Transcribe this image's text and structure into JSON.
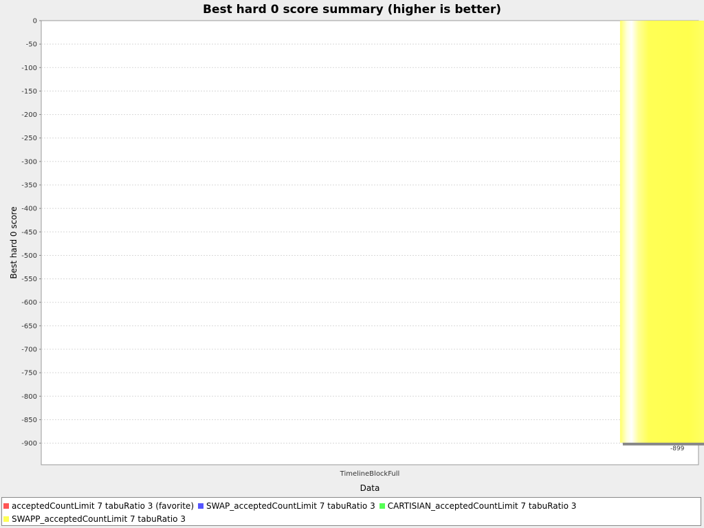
{
  "chart_data": {
    "type": "bar",
    "title": "Best hard 0 score summary (higher is better)",
    "xlabel": "Data",
    "ylabel": "Best hard 0 score",
    "categories": [
      "TimelineBlockFull"
    ],
    "ylim": [
      -946,
      0
    ],
    "y_tick_step": 50,
    "grid": true,
    "legend_position": "bottom",
    "series": [
      {
        "name": "acceptedCountLimit 7 tabuRatio 3 (favorite)",
        "color": "#ff5555",
        "values": [
          null
        ]
      },
      {
        "name": "SWAP_acceptedCountLimit 7 tabuRatio 3",
        "color": "#5555ff",
        "values": [
          null
        ]
      },
      {
        "name": "CARTISIAN_acceptedCountLimit 7 tabuRatio 3",
        "color": "#55ff55",
        "values": [
          null
        ]
      },
      {
        "name": "SWAPP_acceptedCountLimit 7 tabuRatio 3",
        "color": "#ffff55",
        "values": [
          -899
        ]
      }
    ],
    "data_labels": [
      {
        "series": 3,
        "category": 0,
        "text": "-899"
      }
    ]
  }
}
